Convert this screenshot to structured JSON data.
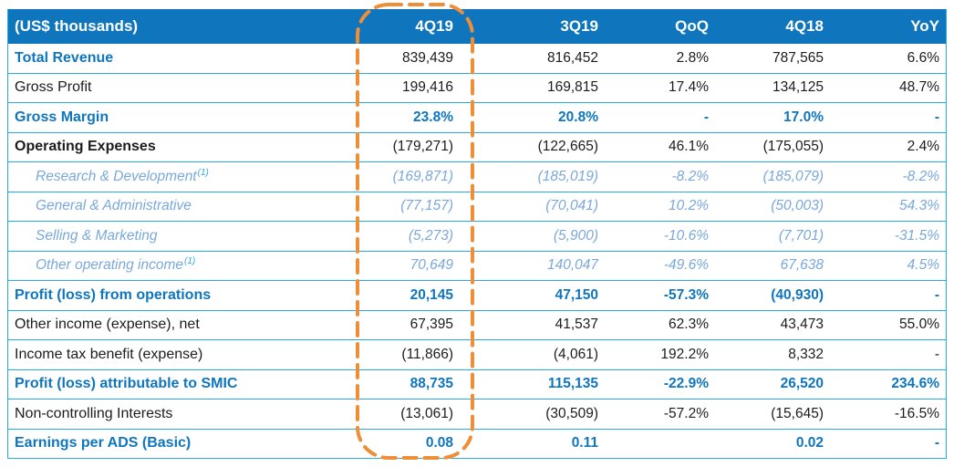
{
  "table": {
    "columns": [
      "(US$ thousands)",
      "4Q19",
      "3Q19",
      "QoQ",
      "4Q18",
      "YoY"
    ],
    "highlighted_column": "4Q19",
    "rows": [
      {
        "label": "Total Revenue",
        "sup": "",
        "label_style": "blue-bold",
        "value_style": "black",
        "values": [
          "839,439",
          "816,452",
          "2.8%",
          "787,565",
          "6.6%"
        ]
      },
      {
        "label": "Gross Profit",
        "sup": "",
        "label_style": "black",
        "value_style": "black",
        "values": [
          "199,416",
          "169,815",
          "17.4%",
          "134,125",
          "48.7%"
        ]
      },
      {
        "label": "Gross Margin",
        "sup": "",
        "label_style": "blue-bold",
        "value_style": "blue-bold",
        "values": [
          "23.8%",
          "20.8%",
          "-",
          "17.0%",
          "-"
        ]
      },
      {
        "label": "Operating Expenses",
        "sup": "",
        "label_style": "black-bold",
        "value_style": "black",
        "values": [
          "(179,271)",
          "(122,665)",
          "46.1%",
          "(175,055)",
          "2.4%"
        ]
      },
      {
        "label": "Research & Development",
        "sup": "(1)",
        "label_style": "sub",
        "value_style": "sub",
        "values": [
          "(169,871)",
          "(185,019)",
          "-8.2%",
          "(185,079)",
          "-8.2%"
        ]
      },
      {
        "label": "General & Administrative",
        "sup": "",
        "label_style": "sub",
        "value_style": "sub",
        "values": [
          "(77,157)",
          "(70,041)",
          "10.2%",
          "(50,003)",
          "54.3%"
        ]
      },
      {
        "label": "Selling & Marketing",
        "sup": "",
        "label_style": "sub",
        "value_style": "sub",
        "values": [
          "(5,273)",
          "(5,900)",
          "-10.6%",
          "(7,701)",
          "-31.5%"
        ]
      },
      {
        "label": "Other operating income",
        "sup": "(1)",
        "label_style": "sub",
        "value_style": "sub",
        "values": [
          "70,649",
          "140,047",
          "-49.6%",
          "67,638",
          "4.5%"
        ]
      },
      {
        "label": "Profit (loss) from operations",
        "sup": "",
        "label_style": "blue-bold",
        "value_style": "blue-bold",
        "values": [
          "20,145",
          "47,150",
          "-57.3%",
          "(40,930)",
          "-"
        ]
      },
      {
        "label": "Other income (expense), net",
        "sup": "",
        "label_style": "black",
        "value_style": "black",
        "values": [
          "67,395",
          "41,537",
          "62.3%",
          "43,473",
          "55.0%"
        ]
      },
      {
        "label": "Income tax benefit (expense)",
        "sup": "",
        "label_style": "black",
        "value_style": "black",
        "values": [
          "(11,866)",
          "(4,061)",
          "192.2%",
          "8,332",
          "-"
        ]
      },
      {
        "label": "Profit (loss) attributable to SMIC",
        "sup": "",
        "label_style": "blue-bold",
        "value_style": "blue-bold",
        "values": [
          "88,735",
          "115,135",
          "-22.9%",
          "26,520",
          "234.6%"
        ]
      },
      {
        "label": "Non-controlling Interests",
        "sup": "",
        "label_style": "black",
        "value_style": "black",
        "values": [
          "(13,061)",
          "(30,509)",
          "-57.2%",
          "(15,645)",
          "-16.5%"
        ]
      },
      {
        "label": "Earnings per ADS (Basic)",
        "sup": "",
        "label_style": "blue-bold",
        "value_style": "blue-bold",
        "values": [
          "0.08",
          "0.11",
          "",
          "0.02",
          "-"
        ]
      }
    ]
  },
  "colors": {
    "header_blue": "#0f76be",
    "border_cyan": "#29abe2",
    "sub_blue": "#7aa8db",
    "highlight_orange": "#ee8f38",
    "text_black": "#1c1c1c"
  }
}
